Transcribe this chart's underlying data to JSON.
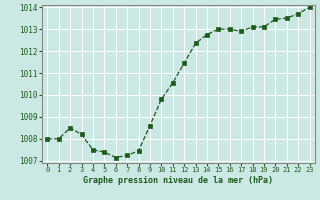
{
  "x": [
    0,
    1,
    2,
    3,
    4,
    5,
    6,
    7,
    8,
    9,
    10,
    11,
    12,
    13,
    14,
    15,
    16,
    17,
    18,
    19,
    20,
    21,
    22,
    23
  ],
  "y": [
    1008.0,
    1008.0,
    1008.5,
    1008.2,
    1007.5,
    1007.4,
    1007.15,
    1007.25,
    1007.45,
    1008.6,
    1009.8,
    1010.55,
    1011.45,
    1012.35,
    1012.75,
    1013.0,
    1013.0,
    1012.9,
    1013.1,
    1013.1,
    1013.45,
    1013.5,
    1013.7,
    1014.0
  ],
  "ylim": [
    1007.0,
    1014.0
  ],
  "xlim_min": -0.5,
  "xlim_max": 23.5,
  "yticks": [
    1007,
    1008,
    1009,
    1010,
    1011,
    1012,
    1013,
    1014
  ],
  "xticks": [
    0,
    1,
    2,
    3,
    4,
    5,
    6,
    7,
    8,
    9,
    10,
    11,
    12,
    13,
    14,
    15,
    16,
    17,
    18,
    19,
    20,
    21,
    22,
    23
  ],
  "line_color": "#1a5c1a",
  "marker_color": "#1a5c1a",
  "bg_color": "#cce8e4",
  "grid_color": "#ffffff",
  "xlabel": "Graphe pression niveau de la mer (hPa)",
  "xlabel_color": "#1a5c1a",
  "tick_label_color": "#1a5c1a",
  "border_color": "#888888",
  "fig_width": 3.2,
  "fig_height": 2.0,
  "dpi": 100
}
